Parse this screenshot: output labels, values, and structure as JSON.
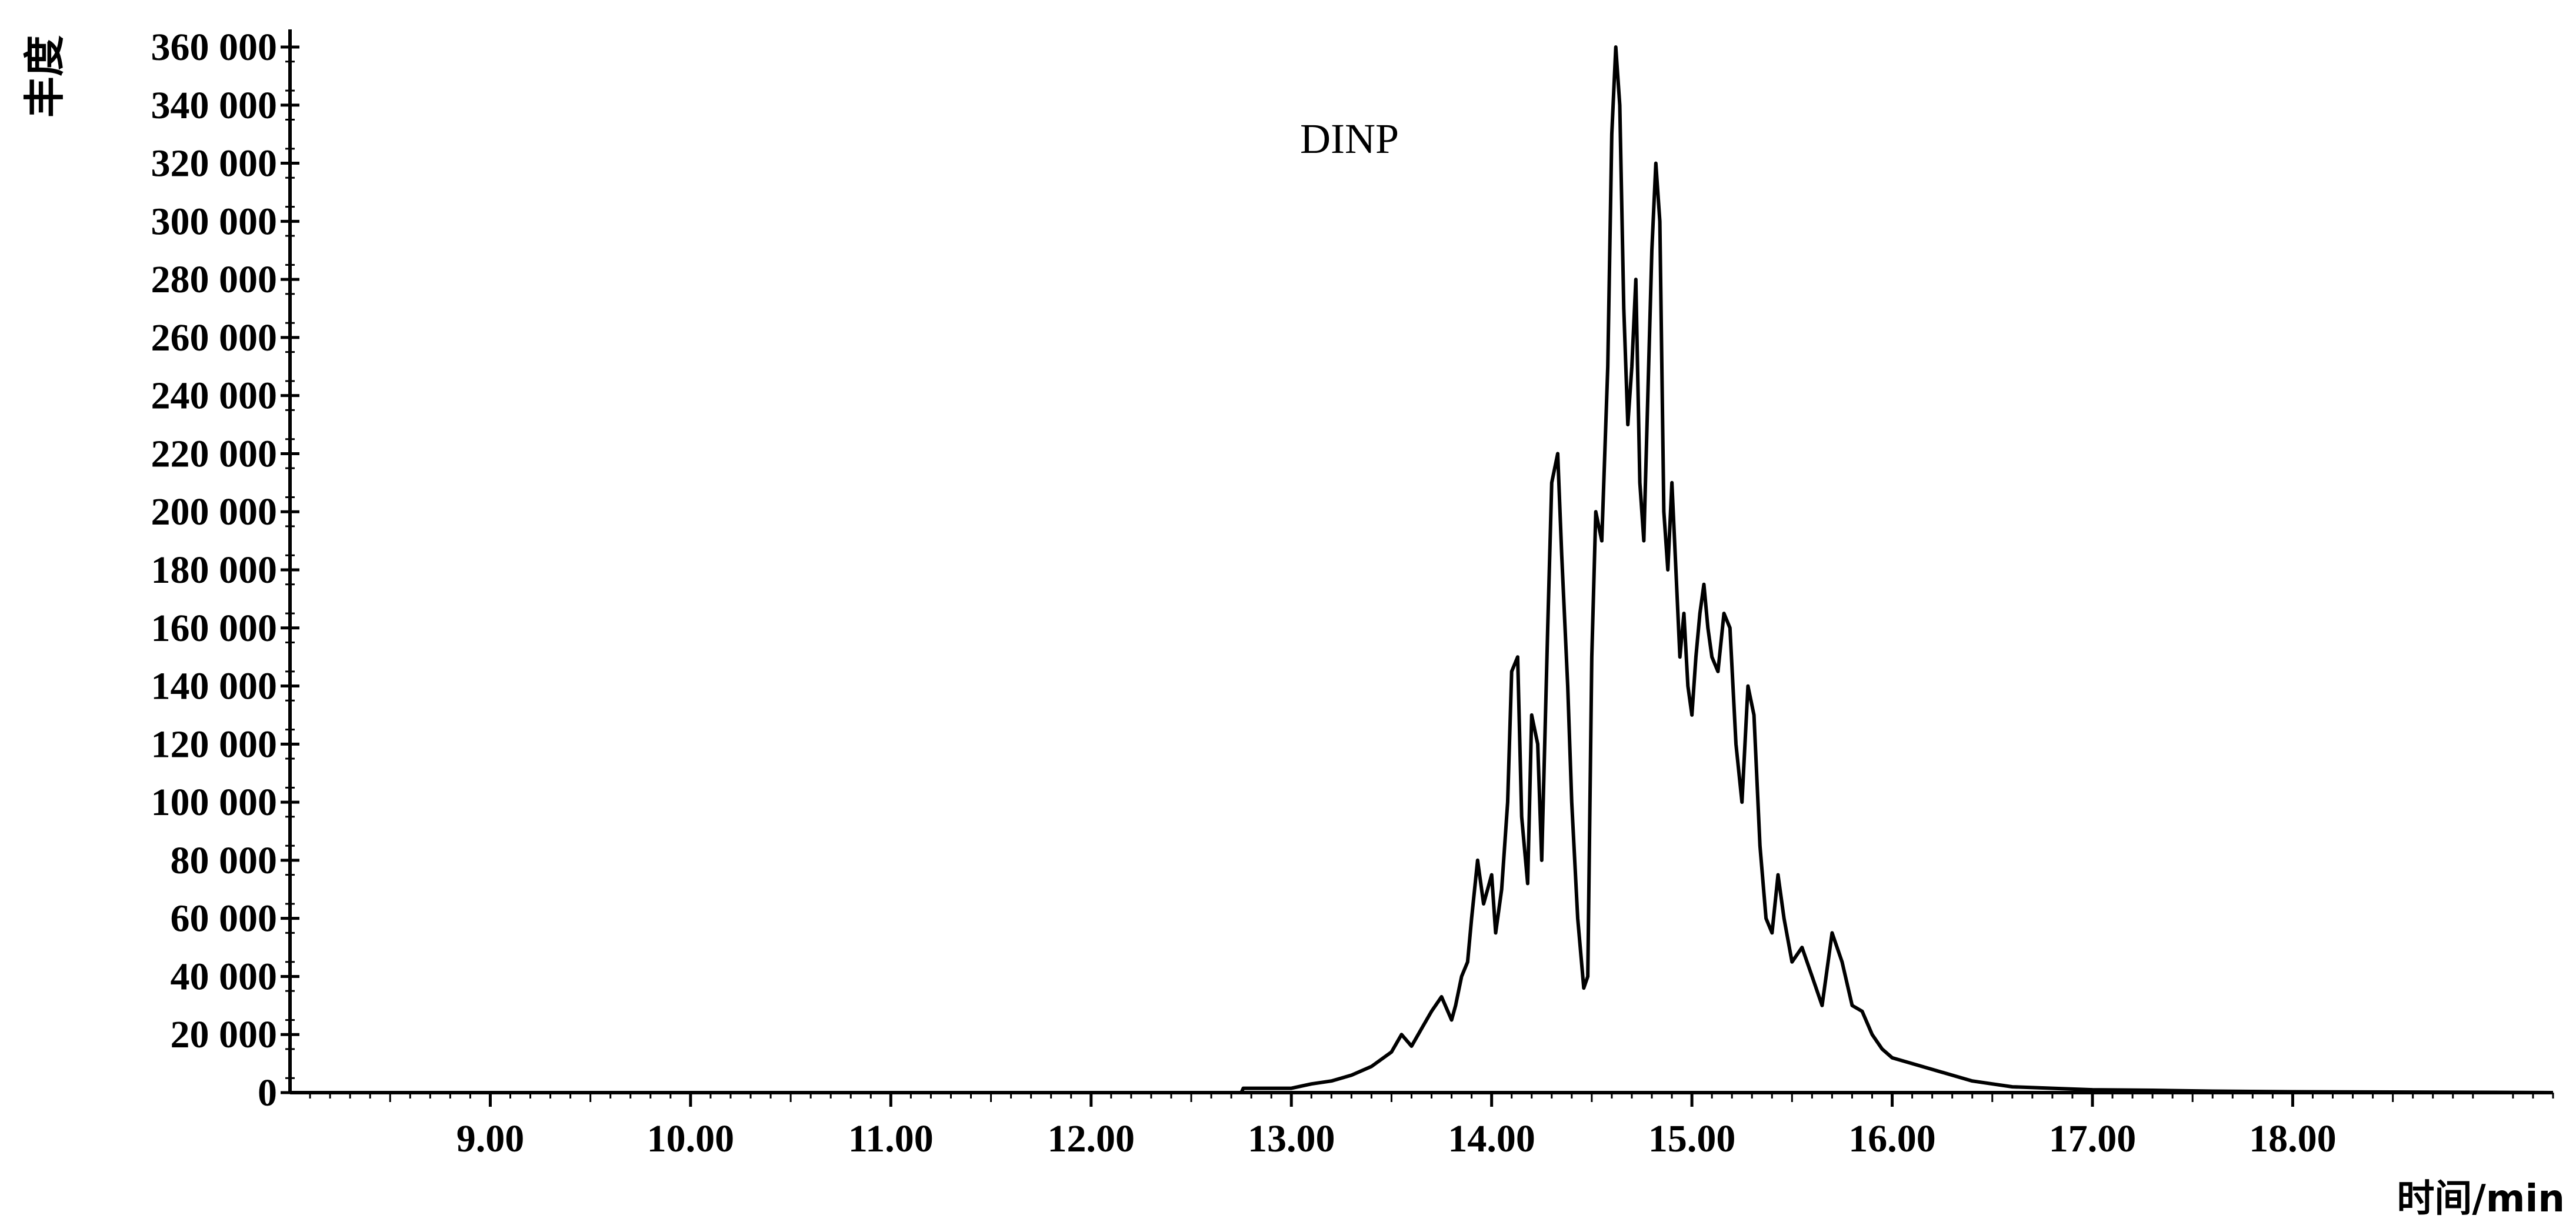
{
  "chart_data": {
    "type": "line",
    "title": "",
    "annotation": "DINP",
    "xlabel": "时间/min",
    "ylabel": "丰度",
    "xlim": [
      8.0,
      19.3
    ],
    "ylim": [
      0,
      360000
    ],
    "x_ticks": [
      {
        "value": 9.0,
        "label": "9.00"
      },
      {
        "value": 10.0,
        "label": "10.00"
      },
      {
        "value": 11.0,
        "label": "11.00"
      },
      {
        "value": 12.0,
        "label": "12.00"
      },
      {
        "value": 13.0,
        "label": "13.00"
      },
      {
        "value": 14.0,
        "label": "14.00"
      },
      {
        "value": 15.0,
        "label": "15.00"
      },
      {
        "value": 16.0,
        "label": "16.00"
      },
      {
        "value": 17.0,
        "label": "17.00"
      },
      {
        "value": 18.0,
        "label": "18.00"
      }
    ],
    "y_ticks": [
      {
        "value": 0,
        "label": "0"
      },
      {
        "value": 20000,
        "label": "20 000"
      },
      {
        "value": 40000,
        "label": "40 000"
      },
      {
        "value": 60000,
        "label": "60 000"
      },
      {
        "value": 80000,
        "label": "80 000"
      },
      {
        "value": 100000,
        "label": "100 000"
      },
      {
        "value": 120000,
        "label": "120 000"
      },
      {
        "value": 140000,
        "label": "140 000"
      },
      {
        "value": 160000,
        "label": "160 000"
      },
      {
        "value": 180000,
        "label": "180 000"
      },
      {
        "value": 200000,
        "label": "200 000"
      },
      {
        "value": 220000,
        "label": "220 000"
      },
      {
        "value": 240000,
        "label": "240 000"
      },
      {
        "value": 260000,
        "label": "260 000"
      },
      {
        "value": 280000,
        "label": "280 000"
      },
      {
        "value": 300000,
        "label": "300 000"
      },
      {
        "value": 320000,
        "label": "320 000"
      },
      {
        "value": 340000,
        "label": "340 000"
      },
      {
        "value": 360000,
        "label": "360 000"
      }
    ],
    "grid": false,
    "legend": "none",
    "series": [
      {
        "color": "#000000",
        "x": [
          8.0,
          12.75,
          12.76,
          13.0,
          13.1,
          13.2,
          13.3,
          13.4,
          13.5,
          13.55,
          13.6,
          13.65,
          13.7,
          13.75,
          13.8,
          13.82,
          13.85,
          13.88,
          13.9,
          13.93,
          13.96,
          14.0,
          14.02,
          14.05,
          14.08,
          14.1,
          14.13,
          14.15,
          14.18,
          14.2,
          14.23,
          14.25,
          14.28,
          14.3,
          14.33,
          14.35,
          14.38,
          14.4,
          14.43,
          14.46,
          14.48,
          14.5,
          14.52,
          14.55,
          14.58,
          14.6,
          14.62,
          14.64,
          14.66,
          14.68,
          14.7,
          14.72,
          14.74,
          14.76,
          14.78,
          14.8,
          14.82,
          14.84,
          14.86,
          14.88,
          14.9,
          14.92,
          14.94,
          14.96,
          14.98,
          15.0,
          15.02,
          15.04,
          15.06,
          15.08,
          15.1,
          15.13,
          15.16,
          15.19,
          15.22,
          15.25,
          15.28,
          15.31,
          15.34,
          15.37,
          15.4,
          15.43,
          15.46,
          15.5,
          15.55,
          15.6,
          15.65,
          15.7,
          15.75,
          15.8,
          15.85,
          15.9,
          15.95,
          16.0,
          16.1,
          16.2,
          16.3,
          16.4,
          16.5,
          16.6,
          16.8,
          17.0,
          17.3,
          17.6,
          18.0,
          18.5,
          19.0,
          19.3
        ],
        "y": [
          0,
          0,
          1500,
          1500,
          3000,
          4000,
          6000,
          9000,
          14000,
          20000,
          16000,
          22000,
          28000,
          33000,
          25000,
          30000,
          40000,
          45000,
          60000,
          80000,
          65000,
          75000,
          55000,
          70000,
          100000,
          145000,
          150000,
          95000,
          72000,
          130000,
          120000,
          80000,
          160000,
          210000,
          220000,
          185000,
          140000,
          100000,
          60000,
          36000,
          40000,
          150000,
          200000,
          190000,
          250000,
          330000,
          360000,
          340000,
          270000,
          230000,
          250000,
          280000,
          210000,
          190000,
          240000,
          290000,
          320000,
          300000,
          200000,
          180000,
          210000,
          180000,
          150000,
          165000,
          140000,
          130000,
          150000,
          165000,
          175000,
          160000,
          150000,
          145000,
          165000,
          160000,
          120000,
          100000,
          140000,
          130000,
          85000,
          60000,
          55000,
          75000,
          60000,
          45000,
          50000,
          40000,
          30000,
          55000,
          45000,
          30000,
          28000,
          20000,
          15000,
          12000,
          10000,
          8000,
          6000,
          4000,
          3000,
          2000,
          1500,
          1000,
          800,
          500,
          300,
          200,
          100,
          0
        ]
      }
    ]
  }
}
